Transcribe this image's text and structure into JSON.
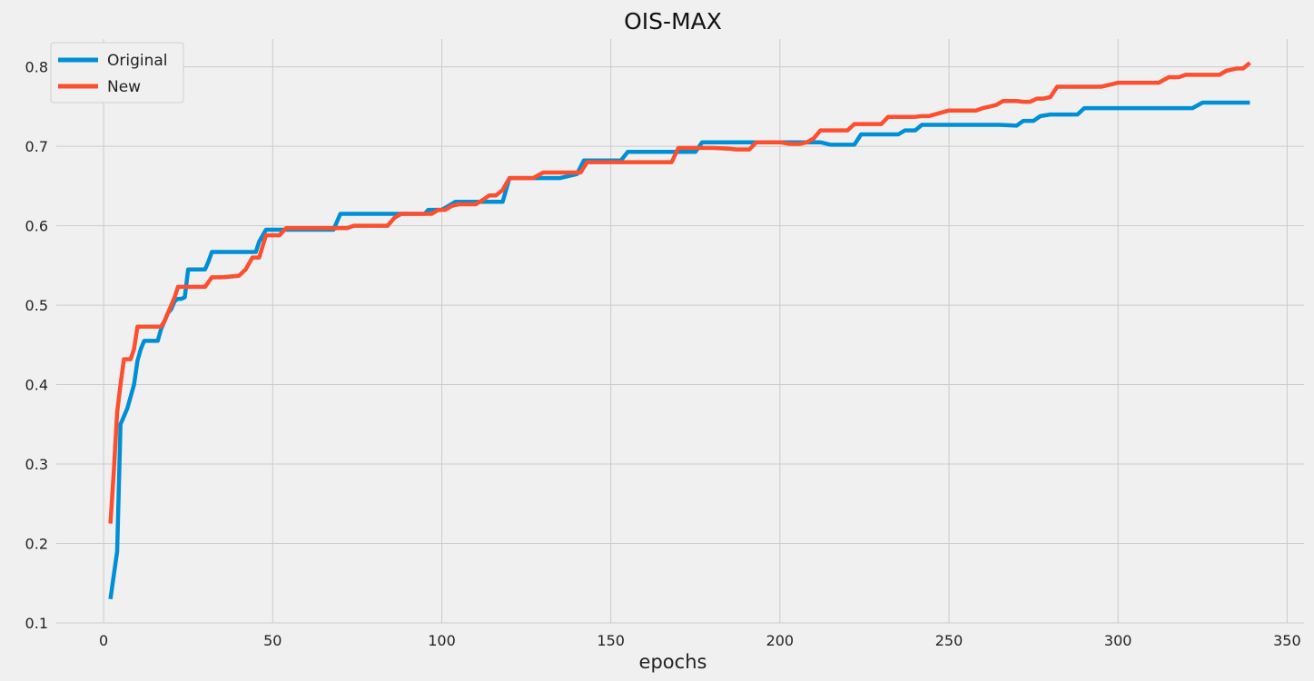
{
  "chart_data": {
    "type": "line",
    "title": "OIS-MAX",
    "xlabel": "epochs",
    "ylabel": "",
    "xlim": [
      -14,
      355
    ],
    "ylim": [
      0.1,
      0.835
    ],
    "xticks": [
      0,
      50,
      100,
      150,
      200,
      250,
      300,
      350
    ],
    "yticks": [
      0.1,
      0.2,
      0.3,
      0.4,
      0.5,
      0.6,
      0.7,
      0.8
    ],
    "grid": true,
    "legend": "top-left",
    "series": [
      {
        "name": "Original",
        "color": "#008fd5",
        "x": [
          2,
          4,
          5,
          6,
          7,
          9,
          10,
          11,
          12,
          14,
          15,
          16,
          17,
          18,
          19,
          20,
          21,
          22,
          23,
          24,
          25,
          26,
          28,
          29,
          30,
          31,
          32,
          33,
          40,
          42,
          44,
          45,
          46,
          48,
          50,
          52,
          54,
          56,
          58,
          60,
          62,
          64,
          66,
          68,
          70,
          75,
          80,
          85,
          90,
          95,
          96,
          100,
          104,
          108,
          112,
          116,
          118,
          120,
          125,
          130,
          135,
          140,
          142,
          145,
          150,
          153,
          155,
          160,
          165,
          170,
          172,
          175,
          177,
          180,
          185,
          190,
          195,
          200,
          205,
          210,
          212,
          215,
          220,
          222,
          224,
          230,
          235,
          237,
          240,
          242,
          245,
          250,
          260,
          265,
          270,
          272,
          275,
          277,
          280,
          285,
          288,
          290,
          300,
          310,
          320,
          322,
          325,
          330,
          339
        ],
        "y": [
          0.13,
          0.19,
          0.35,
          0.36,
          0.37,
          0.4,
          0.43,
          0.445,
          0.455,
          0.455,
          0.455,
          0.455,
          0.47,
          0.48,
          0.49,
          0.495,
          0.505,
          0.508,
          0.508,
          0.51,
          0.545,
          0.545,
          0.545,
          0.545,
          0.545,
          0.555,
          0.567,
          0.567,
          0.567,
          0.567,
          0.567,
          0.567,
          0.58,
          0.595,
          0.595,
          0.595,
          0.595,
          0.595,
          0.595,
          0.595,
          0.595,
          0.595,
          0.595,
          0.595,
          0.615,
          0.615,
          0.615,
          0.615,
          0.615,
          0.615,
          0.62,
          0.62,
          0.63,
          0.63,
          0.63,
          0.63,
          0.63,
          0.66,
          0.66,
          0.66,
          0.66,
          0.665,
          0.682,
          0.682,
          0.682,
          0.682,
          0.693,
          0.693,
          0.693,
          0.693,
          0.693,
          0.693,
          0.705,
          0.705,
          0.705,
          0.705,
          0.705,
          0.705,
          0.705,
          0.705,
          0.705,
          0.702,
          0.702,
          0.702,
          0.715,
          0.715,
          0.715,
          0.72,
          0.72,
          0.727,
          0.727,
          0.727,
          0.727,
          0.727,
          0.726,
          0.732,
          0.732,
          0.738,
          0.74,
          0.74,
          0.74,
          0.748,
          0.748,
          0.748,
          0.748,
          0.748,
          0.755,
          0.755,
          0.755
        ]
      },
      {
        "name": "New",
        "color": "#fc4f30",
        "x": [
          2,
          3,
          4,
          5,
          6,
          7,
          8,
          9,
          10,
          11,
          12,
          13,
          14,
          15,
          16,
          17,
          18,
          19,
          20,
          21,
          22,
          24,
          28,
          30,
          32,
          35,
          40,
          42,
          44,
          46,
          48,
          50,
          52,
          54,
          56,
          60,
          65,
          70,
          72,
          74,
          80,
          84,
          86,
          88,
          90,
          95,
          97,
          99,
          101,
          103,
          105,
          110,
          112,
          114,
          116,
          118,
          120,
          125,
          127,
          130,
          135,
          139,
          141,
          143,
          146,
          150,
          155,
          160,
          165,
          168,
          170,
          175,
          180,
          185,
          187,
          189,
          191,
          193,
          195,
          200,
          203,
          206,
          208,
          210,
          212,
          215,
          220,
          222,
          225,
          230,
          232,
          235,
          240,
          242,
          244,
          250,
          255,
          258,
          260,
          262,
          264,
          266,
          268,
          270,
          272,
          274,
          276,
          278,
          280,
          282,
          285,
          290,
          295,
          298,
          300,
          305,
          310,
          312,
          315,
          318,
          320,
          325,
          330,
          332,
          335,
          337,
          339
        ],
        "y": [
          0.225,
          0.29,
          0.365,
          0.4,
          0.432,
          0.432,
          0.432,
          0.445,
          0.473,
          0.473,
          0.473,
          0.473,
          0.473,
          0.473,
          0.473,
          0.473,
          0.48,
          0.49,
          0.5,
          0.51,
          0.523,
          0.523,
          0.523,
          0.523,
          0.535,
          0.535,
          0.537,
          0.545,
          0.56,
          0.56,
          0.588,
          0.588,
          0.588,
          0.597,
          0.597,
          0.597,
          0.597,
          0.597,
          0.597,
          0.6,
          0.6,
          0.6,
          0.61,
          0.615,
          0.615,
          0.615,
          0.615,
          0.62,
          0.62,
          0.625,
          0.627,
          0.627,
          0.632,
          0.638,
          0.638,
          0.645,
          0.66,
          0.66,
          0.66,
          0.667,
          0.667,
          0.667,
          0.667,
          0.68,
          0.68,
          0.68,
          0.68,
          0.68,
          0.68,
          0.68,
          0.698,
          0.698,
          0.698,
          0.697,
          0.696,
          0.696,
          0.696,
          0.705,
          0.705,
          0.705,
          0.703,
          0.703,
          0.705,
          0.71,
          0.72,
          0.72,
          0.72,
          0.728,
          0.728,
          0.728,
          0.737,
          0.737,
          0.737,
          0.738,
          0.738,
          0.745,
          0.745,
          0.745,
          0.748,
          0.75,
          0.752,
          0.757,
          0.757,
          0.757,
          0.756,
          0.756,
          0.76,
          0.76,
          0.762,
          0.775,
          0.775,
          0.775,
          0.775,
          0.778,
          0.78,
          0.78,
          0.78,
          0.78,
          0.787,
          0.787,
          0.79,
          0.79,
          0.79,
          0.795,
          0.798,
          0.798,
          0.805
        ]
      }
    ]
  }
}
